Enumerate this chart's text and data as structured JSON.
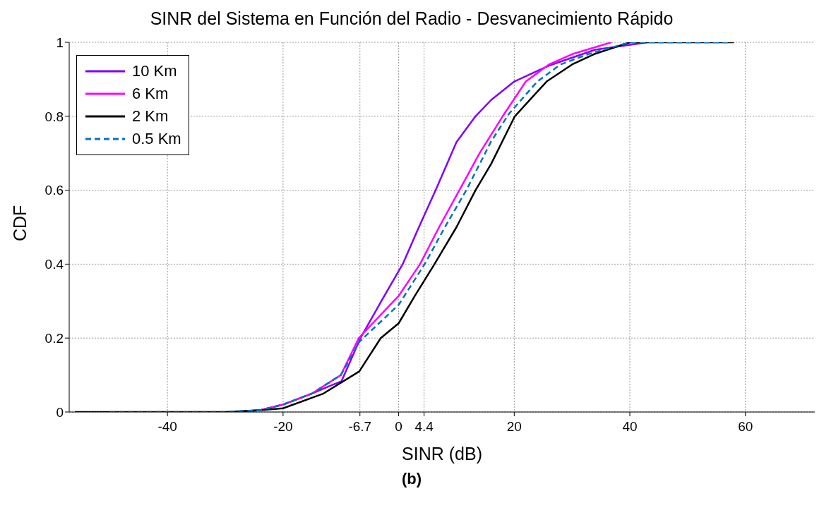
{
  "chart_data": {
    "type": "line",
    "title": "SINR del Sistema en Función del Radio - Desvanecimiento Rápido",
    "xlabel": "SINR (dB)",
    "ylabel": "CDF",
    "annotations": [
      "(b)"
    ],
    "xlim": [
      -57,
      72
    ],
    "ylim": [
      0,
      1
    ],
    "xticks": [
      -40,
      -20,
      -6.7,
      0,
      4.4,
      20,
      40,
      60
    ],
    "yticks": [
      0,
      0.2,
      0.4,
      0.6,
      0.8,
      1
    ],
    "grid": true,
    "legend": "top left",
    "marker": "none",
    "series": [
      {
        "name": "10 Km",
        "color": "#8000ff",
        "line_style": "solid",
        "x": [
          -29,
          -24,
          -20,
          -15,
          -12,
          -9.9,
          -6.6,
          -3,
          0.7,
          3.5,
          6.4,
          10,
          13.3,
          16,
          20,
          26,
          34,
          43
        ],
        "values": [
          0,
          0.005,
          0.02,
          0.05,
          0.07,
          0.083,
          0.2,
          0.3,
          0.4,
          0.5,
          0.6,
          0.73,
          0.8,
          0.844,
          0.894,
          0.937,
          0.98,
          1
        ]
      },
      {
        "name": "6 Km",
        "color": "#ff00ff",
        "line_style": "solid",
        "x": [
          -29,
          -24,
          -20,
          -15,
          -10,
          -6.9,
          0,
          3.7,
          7,
          10.5,
          14,
          18,
          22,
          26,
          30,
          36.8
        ],
        "values": [
          0,
          0.005,
          0.02,
          0.05,
          0.1,
          0.2,
          0.314,
          0.4,
          0.5,
          0.6,
          0.7,
          0.8,
          0.894,
          0.94,
          0.968,
          1
        ]
      },
      {
        "name": "2 Km",
        "color": "#000000",
        "line_style": "solid",
        "x": [
          -56,
          -30,
          -24,
          -20,
          -13,
          -6.8,
          -3.1,
          0,
          2.8,
          6.2,
          10,
          13.3,
          16,
          20.1,
          25.6,
          30,
          33.8,
          40,
          58
        ],
        "values": [
          0,
          0,
          0.005,
          0.01,
          0.05,
          0.11,
          0.2,
          0.24,
          0.314,
          0.4,
          0.5,
          0.6,
          0.671,
          0.8,
          0.894,
          0.94,
          0.968,
          1,
          1
        ]
      },
      {
        "name": "0.5 Km",
        "color": "#0072bd",
        "line_style": "dashed",
        "x": [
          -50,
          -30,
          -24,
          -20,
          -15,
          -10,
          -6.8,
          0,
          4.5,
          8,
          11.7,
          16,
          19.1,
          24,
          28,
          32.8,
          40,
          57
        ],
        "values": [
          0,
          0,
          0.005,
          0.02,
          0.05,
          0.1,
          0.19,
          0.29,
          0.4,
          0.5,
          0.6,
          0.732,
          0.807,
          0.894,
          0.94,
          0.968,
          1,
          1
        ]
      }
    ]
  }
}
